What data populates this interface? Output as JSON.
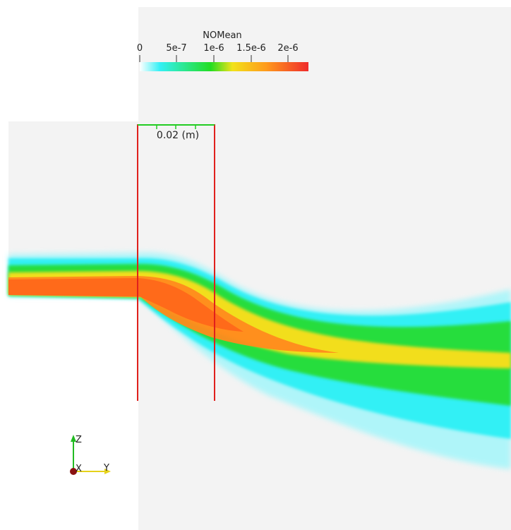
{
  "colorbar": {
    "title": "NOMean",
    "ticks": [
      "0",
      "5e-7",
      "1e-6",
      "1.5e-6",
      "2e-6"
    ],
    "colors": [
      "#ffffff",
      "#33f0f5",
      "#22dd22",
      "#f2e21a",
      "#ff9a1c",
      "#ef2b2b"
    ]
  },
  "scale": {
    "label": "0.02 (m)"
  },
  "axes": {
    "z_label": "Z",
    "x_label": "X",
    "y_label": "Y"
  },
  "colors": {
    "background": "#f3f3f3",
    "page": "#ffffff",
    "probe_lines": "#e0201c",
    "scale_bar": "#22cc22"
  }
}
